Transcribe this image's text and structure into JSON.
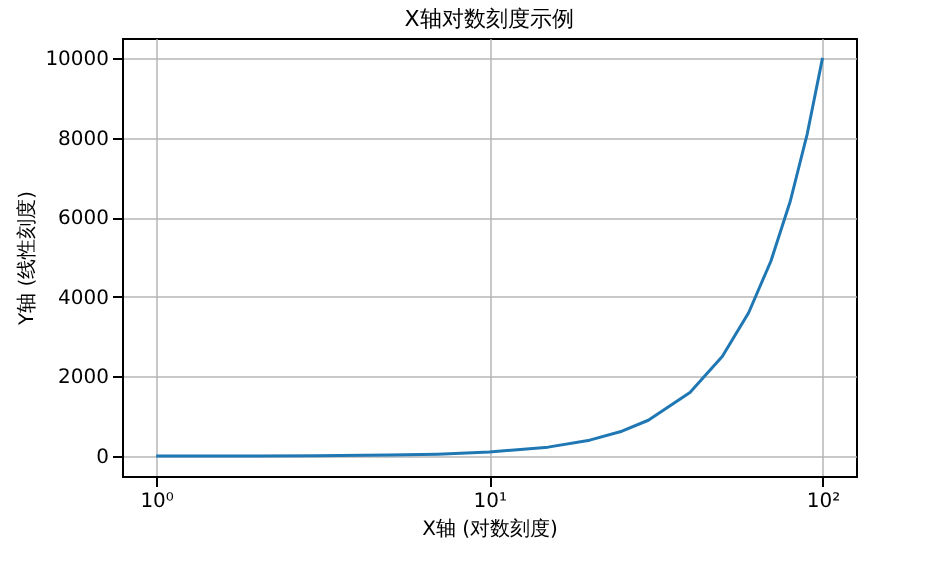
{
  "chart_data": {
    "type": "line",
    "title": "X轴对数刻度示例",
    "xlabel": "X轴 (对数刻度)",
    "ylabel": "Y轴 (线性刻度)",
    "x": [
      1,
      2,
      3,
      5,
      7,
      10,
      15,
      20,
      25,
      30,
      40,
      50,
      60,
      70,
      80,
      90,
      100
    ],
    "series": [
      {
        "color": "#1f77b4",
        "values": [
          1,
          4,
          9,
          25,
          49,
          100,
          225,
          400,
          625,
          900,
          1600,
          2500,
          3600,
          4900,
          6400,
          8100,
          10000
        ]
      }
    ],
    "log": "x",
    "xlim": [
      0.79,
      126
    ],
    "xticks": [
      {
        "value": 1,
        "label": "10⁰"
      },
      {
        "value": 10,
        "label": "10¹"
      },
      {
        "value": 100,
        "label": "10²"
      }
    ],
    "ylim": [
      -500,
      10500
    ],
    "yticks": [
      0,
      2000,
      4000,
      6000,
      8000,
      10000
    ],
    "grid": true
  }
}
